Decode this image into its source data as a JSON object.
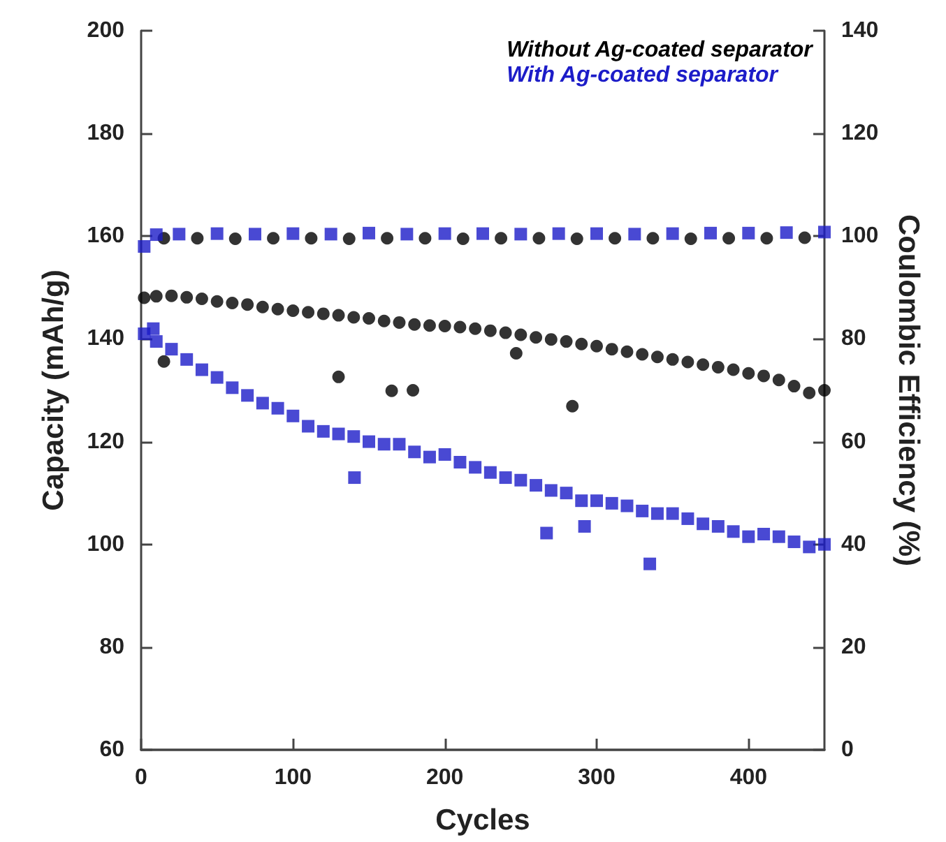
{
  "chart_data": {
    "type": "scatter",
    "xlabel": "Cycles",
    "ylabel": "Capacity (mAh/g)",
    "y2label": "Coulombic Efficiency (%)",
    "xlim": [
      0,
      450
    ],
    "xticks": [
      0,
      100,
      200,
      300,
      400
    ],
    "ylim": [
      60,
      200
    ],
    "yticks": [
      60,
      80,
      100,
      120,
      140,
      160,
      180,
      200
    ],
    "y2lim": [
      0,
      140
    ],
    "y2ticks": [
      0,
      20,
      40,
      60,
      80,
      100,
      120,
      140
    ],
    "grid": false,
    "legend": "top right",
    "series": [
      {
        "name": "Without Ag-coated separator",
        "color": "#000000",
        "marker": "circle",
        "x": [
          2,
          10,
          15,
          20,
          30,
          40,
          50,
          60,
          70,
          80,
          90,
          100,
          110,
          120,
          130,
          130,
          140,
          150,
          160,
          165,
          170,
          179,
          180,
          190,
          200,
          210,
          220,
          230,
          240,
          247,
          250,
          260,
          270,
          280,
          284,
          290,
          300,
          310,
          320,
          330,
          340,
          350,
          360,
          370,
          380,
          390,
          400,
          410,
          420,
          430,
          440,
          450
        ],
        "values": [
          148,
          148.3,
          135.6,
          148.4,
          148.1,
          147.8,
          147.3,
          147,
          146.7,
          146.2,
          145.8,
          145.5,
          145.2,
          144.9,
          144.6,
          132.6,
          144.2,
          144,
          143.5,
          129.9,
          143.2,
          130,
          142.8,
          142.6,
          142.5,
          142.3,
          142,
          141.6,
          141.2,
          137.2,
          140.8,
          140.3,
          139.9,
          139.5,
          126.9,
          139,
          138.6,
          138,
          137.5,
          137,
          136.5,
          136,
          135.5,
          135,
          134.5,
          134,
          133.3,
          132.8,
          132,
          130.8,
          129.5,
          130
        ]
      },
      {
        "name": "With Ag-coated separator",
        "color": "#1c1cc8",
        "marker": "square",
        "x": [
          2,
          8,
          10,
          20,
          30,
          40,
          50,
          60,
          70,
          80,
          90,
          100,
          110,
          120,
          130,
          140,
          140.5,
          150,
          160,
          170,
          180,
          190,
          200,
          210,
          220,
          230,
          240,
          250,
          260,
          267,
          270,
          280,
          290,
          292,
          300,
          310,
          320,
          330,
          335,
          340,
          350,
          360,
          370,
          380,
          390,
          400,
          410,
          420,
          430,
          440,
          450
        ],
        "values": [
          141,
          142,
          139.5,
          138,
          136,
          134,
          132.5,
          130.5,
          129,
          127.5,
          126.5,
          125,
          123,
          122,
          121.5,
          121,
          113,
          120,
          119.5,
          119.5,
          118,
          117,
          117.5,
          116,
          115,
          114,
          113,
          112.5,
          111.5,
          102.2,
          110.5,
          110,
          108.5,
          103.5,
          108.5,
          108,
          107.5,
          106.5,
          96.2,
          106,
          106,
          105,
          104,
          103.5,
          102.5,
          101.5,
          102,
          101.5,
          100.5,
          99.5,
          100
        ]
      },
      {
        "color": "#000000",
        "marker": "circle",
        "axis": "y2",
        "x": [
          15,
          37,
          62,
          87,
          112,
          137,
          162,
          187,
          212,
          237,
          262,
          287,
          312,
          337,
          362,
          387,
          412,
          437
        ],
        "values": [
          99.6,
          99.6,
          99.5,
          99.6,
          99.6,
          99.5,
          99.6,
          99.6,
          99.5,
          99.6,
          99.6,
          99.5,
          99.6,
          99.6,
          99.5,
          99.6,
          99.6,
          99.7
        ]
      },
      {
        "color": "#1c1cc8",
        "marker": "square",
        "axis": "y2",
        "x": [
          2,
          10,
          25,
          50,
          75,
          100,
          125,
          150,
          175,
          200,
          225,
          250,
          275,
          300,
          325,
          350,
          375,
          400,
          425,
          450
        ],
        "values": [
          98,
          100.3,
          100.4,
          100.5,
          100.4,
          100.5,
          100.4,
          100.6,
          100.4,
          100.5,
          100.5,
          100.4,
          100.5,
          100.5,
          100.4,
          100.5,
          100.6,
          100.6,
          100.7,
          100.8
        ]
      }
    ]
  }
}
